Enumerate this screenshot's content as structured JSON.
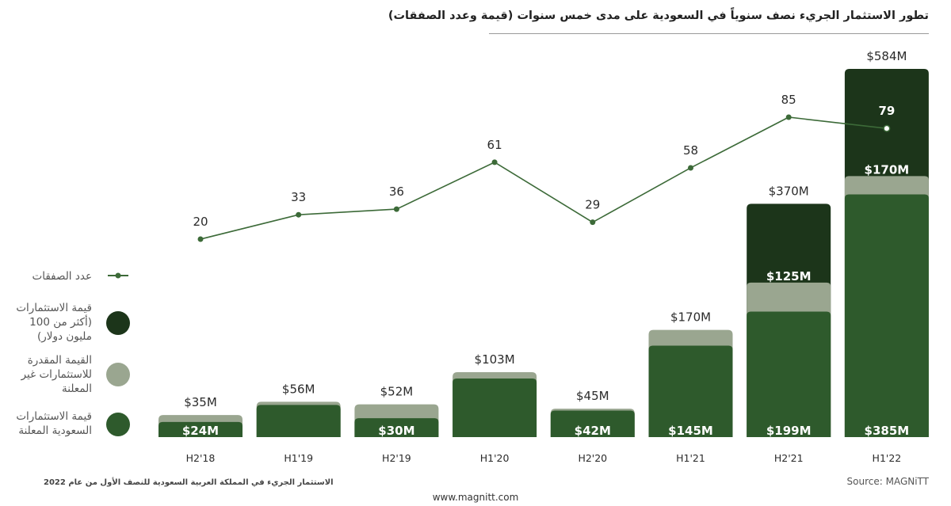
{
  "title": "تطور الاستثمار الجريء نصف سنوياً في السعودية على مدى خمس سنوات (قيمة وعدد الصفقات)",
  "colors": {
    "disclosed": "#2e5a2c",
    "estimated": "#9aa690",
    "mega": "#1c351a",
    "line": "#3c6a38"
  },
  "legend": [
    {
      "label": "عدد الصفقات",
      "icon": "line-marker-icon"
    },
    {
      "label": "قيمة الاستثمارات (أكثر من 100 مليون دولار)",
      "icon": "dark-green-circle-icon"
    },
    {
      "label": "القيمة المقدرة للاستثمارات غير المعلنة",
      "icon": "gray-green-circle-icon"
    },
    {
      "label": "قيمة الاستثمارات السعودية المعلنة",
      "icon": "green-circle-icon"
    }
  ],
  "chart_data": {
    "type": "bar",
    "categories": [
      "H2'18",
      "H1'19",
      "H2'19",
      "H1'20",
      "H2'20",
      "H1'21",
      "H2'21",
      "H1'22"
    ],
    "series": [
      {
        "name": "قيمة الاستثمارات السعودية المعلنة",
        "values": [
          24,
          51,
          30,
          93,
          42,
          145,
          199,
          385
        ],
        "labels": [
          "$24M",
          "",
          "$30M",
          "",
          "$42M",
          "$145M",
          "$199M",
          "$385M"
        ]
      },
      {
        "name": "القيمة المقدرة للاستثمارات غير المعلنة",
        "values": [
          11,
          5,
          22,
          10,
          3,
          25,
          46,
          29
        ]
      },
      {
        "name": "قيمة الاستثمارات (أكثر من 100 مليون دولار)",
        "values": [
          0,
          0,
          0,
          0,
          0,
          0,
          125,
          170
        ],
        "labels": [
          "",
          "",
          "",
          "",
          "",
          "",
          "$125M",
          "$170M"
        ]
      }
    ],
    "totals": [
      35,
      56,
      52,
      103,
      45,
      170,
      370,
      584
    ],
    "total_labels": [
      "$35M",
      "$56M",
      "$52M",
      "$103M",
      "$45M",
      "$170M",
      "$370M",
      "$584M"
    ],
    "deal_count": {
      "name": "عدد الصفقات",
      "values": [
        20,
        33,
        36,
        61,
        29,
        58,
        85,
        79
      ]
    },
    "ylim": [
      0,
      584
    ]
  },
  "footer": {
    "note": "الاستثمار الجريء في المملكة العربية السعودية للنصف الأول من عام 2022",
    "source": "Source: MAGNiTT",
    "url": "www.magnitt.com"
  }
}
